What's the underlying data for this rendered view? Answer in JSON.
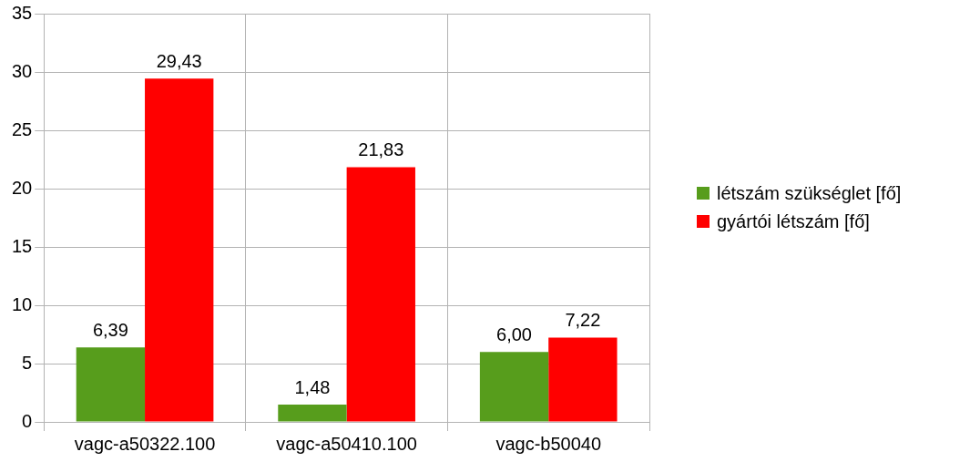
{
  "chart_data": {
    "type": "bar",
    "categories": [
      "vagc-a50322.100",
      "vagc-a50410.100",
      "vagc-b50040"
    ],
    "series": [
      {
        "name": "létszám szükséglet [fő]",
        "color": "#579d1c",
        "values": [
          6.39,
          1.48,
          6.0
        ],
        "value_labels": [
          "6,39",
          "1,48",
          "6,00"
        ]
      },
      {
        "name": "gyártói létszám [fő]",
        "color": "#ff0000",
        "values": [
          29.43,
          21.83,
          7.22
        ],
        "value_labels": [
          "29,43",
          "21,83",
          "7,22"
        ]
      }
    ],
    "ylim": [
      0,
      35
    ],
    "yticks": [
      0,
      5,
      10,
      15,
      20,
      25,
      30,
      35
    ],
    "grid": true,
    "legend": "right"
  }
}
